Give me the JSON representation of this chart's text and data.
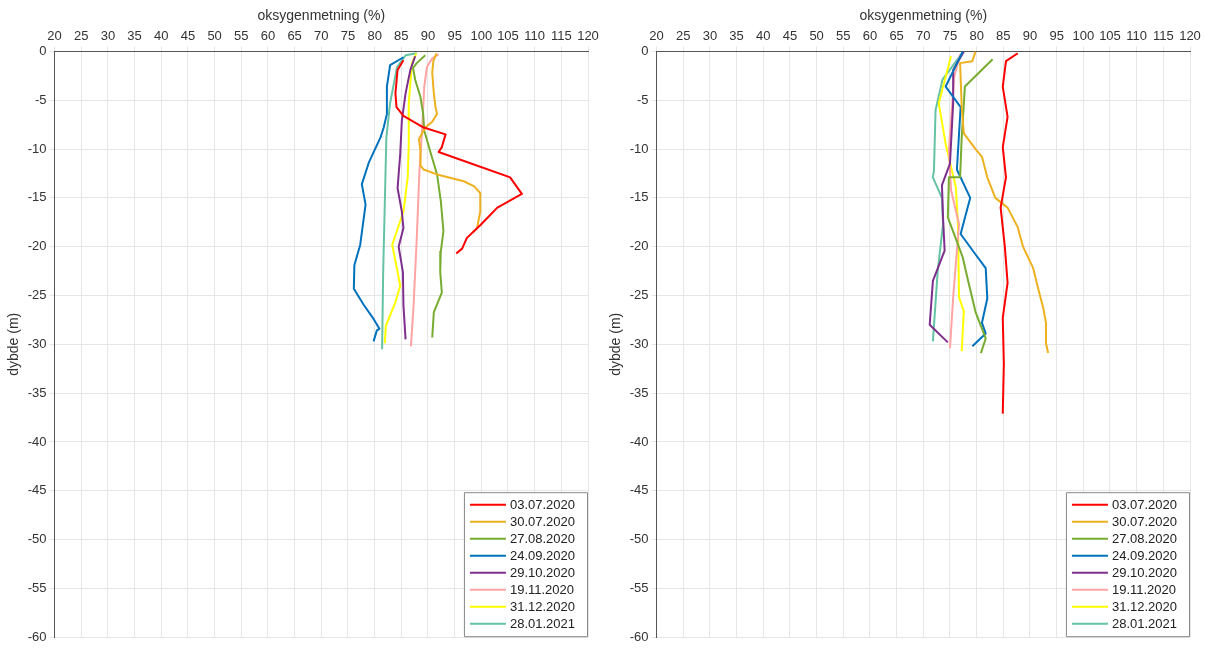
{
  "chart_data": [
    {
      "type": "line",
      "xlabel": "oksygenmetning (%)",
      "ylabel": "dybde (m)",
      "xlim": [
        20,
        120
      ],
      "xticks": [
        20,
        25,
        30,
        35,
        40,
        45,
        50,
        55,
        60,
        65,
        70,
        75,
        80,
        85,
        90,
        95,
        100,
        105,
        110,
        115,
        120
      ],
      "ylim": [
        -60,
        0
      ],
      "yticks": [
        -60,
        -55,
        -50,
        -45,
        -40,
        -35,
        -30,
        -25,
        -20,
        -15,
        -10,
        -5,
        0
      ],
      "grid": true,
      "legend": "bottom right",
      "series": [
        {
          "name": "03.07.2020",
          "color": "#ff0000",
          "x": [
            85.4,
            84.3,
            83.9,
            84.1,
            85.4,
            89.2,
            93.3,
            92.6,
            92,
            105.4,
            107.6,
            103,
            99.8,
            97.3,
            96.4,
            95.3
          ],
          "values": [
            -0.9,
            -1.9,
            -4.3,
            -5.7,
            -6.6,
            -7.8,
            -8.5,
            -9.8,
            -10.3,
            -12.9,
            -14.6,
            -16,
            -17.8,
            -19.1,
            -20.2,
            -20.7
          ]
        },
        {
          "name": "30.07.2020",
          "color": "#edb120",
          "x": [
            91.6,
            91,
            90.8,
            91.1,
            91.4,
            91.7,
            90.8,
            89.5,
            88.3,
            88.6,
            88.6,
            89.2,
            91.7,
            96.7,
            98.6,
            99.8,
            99.8,
            99.2,
            98.3
          ],
          "values": [
            -0.2,
            -1,
            -2.2,
            -4.3,
            -5.7,
            -6.4,
            -7.2,
            -7.8,
            -9,
            -10.2,
            -11.7,
            -12.1,
            -12.6,
            -13.3,
            -13.8,
            -14.5,
            -16.4,
            -18.1,
            -18.6
          ]
        },
        {
          "name": "27.08.2020",
          "color": "#77ac30",
          "x": [
            89.5,
            87.9,
            87.2,
            87.6,
            88.6,
            89.1,
            89.3,
            90.4,
            91.7,
            92.4,
            92.9,
            92.4,
            92.3,
            92.6,
            91.1,
            90.8
          ],
          "values": [
            -0.4,
            -1.2,
            -1.7,
            -2.9,
            -4.7,
            -6.4,
            -8.1,
            -10.2,
            -12.6,
            -15.3,
            -18.4,
            -20.5,
            -22.6,
            -24.7,
            -26.7,
            -29.3
          ]
        },
        {
          "name": "24.09.2020",
          "color": "#0072bd",
          "x": [
            85.4,
            82.9,
            82.3,
            82.3,
            81.7,
            81.1,
            78.9,
            77.6,
            78.3,
            77.3,
            76.2,
            76.1,
            78,
            79.8,
            80.9,
            80.4,
            79.8
          ],
          "values": [
            -0.6,
            -1.4,
            -3.6,
            -6.4,
            -7.8,
            -8.8,
            -11.4,
            -13.6,
            -15.7,
            -19.8,
            -21.9,
            -24.3,
            -26,
            -27.4,
            -28.4,
            -28.6,
            -29.7
          ]
        },
        {
          "name": "29.10.2020",
          "color": "#7e2f8e",
          "x": [
            87.6,
            86.7,
            85.8,
            85.1,
            84.8,
            84.3,
            85.1,
            85.4,
            84.5,
            85.3,
            85.4,
            85.8
          ],
          "values": [
            -0.5,
            -1.9,
            -4.3,
            -7.1,
            -10.5,
            -14,
            -16.4,
            -18.1,
            -20,
            -22.6,
            -26,
            -29.5
          ]
        },
        {
          "name": "19.11.2020",
          "color": "#ffa3a3",
          "x": [
            92,
            90.8,
            89.8,
            89.3,
            88.9,
            88.4,
            87.9,
            87.3,
            86.8
          ],
          "values": [
            -0.3,
            -0.7,
            -1.6,
            -3.6,
            -8.1,
            -12.2,
            -19.1,
            -26,
            -30.2
          ]
        },
        {
          "name": "31.12.2020",
          "color": "#ffff00",
          "x": [
            87.8,
            87,
            86.4,
            86.4,
            86.2,
            85.4,
            83.3,
            84.8,
            83.9,
            82.1,
            81.9
          ],
          "values": [
            -0.2,
            -1.2,
            -5.3,
            -9.5,
            -12.9,
            -16.4,
            -19.8,
            -24,
            -25.7,
            -28.1,
            -29.9
          ]
        },
        {
          "name": "28.01.2021",
          "color": "#66c2a5",
          "x": [
            87.9,
            85.8,
            84.2,
            82.9,
            82.2,
            81.9,
            81.6,
            81.4
          ],
          "values": [
            -0.2,
            -0.4,
            -1.6,
            -5.3,
            -8.8,
            -15.7,
            -22.6,
            -30.5
          ]
        }
      ]
    },
    {
      "type": "line",
      "xlabel": "oksygenmetning (%)",
      "ylabel": "dybde (m)",
      "xlim": [
        20,
        120
      ],
      "xticks": [
        20,
        25,
        30,
        35,
        40,
        45,
        50,
        55,
        60,
        65,
        70,
        75,
        80,
        85,
        90,
        95,
        100,
        105,
        110,
        115,
        120
      ],
      "ylim": [
        -60,
        0
      ],
      "yticks": [
        -60,
        -55,
        -50,
        -45,
        -40,
        -35,
        -30,
        -25,
        -20,
        -15,
        -10,
        -5,
        0
      ],
      "grid": true,
      "legend": "bottom right",
      "series": [
        {
          "name": "03.07.2020",
          "color": "#ff0000",
          "x": [
            87.7,
            85.5,
            84.9,
            85.8,
            84.9,
            85.5,
            84.5,
            85.3,
            85.8,
            84.9,
            85.1,
            84.9
          ],
          "values": [
            -0.2,
            -1,
            -3.6,
            -6.7,
            -9.8,
            -12.9,
            -16,
            -20.1,
            -23.7,
            -27.3,
            -32,
            -37.1
          ]
        },
        {
          "name": "30.07.2020",
          "color": "#edb120",
          "x": [
            79.8,
            79.2,
            76.9,
            77.2,
            77.6,
            79.8,
            81,
            82,
            83.5,
            85.8,
            87.7,
            88.7,
            90.6,
            91.5,
            92.5,
            93,
            93,
            93.4
          ],
          "values": [
            0,
            -1,
            -1.2,
            -5.7,
            -8.4,
            -10,
            -10.8,
            -12.9,
            -15,
            -16,
            -18,
            -20,
            -22.2,
            -24.2,
            -26.3,
            -27.8,
            -29.9,
            -30.9
          ]
        },
        {
          "name": "27.08.2020",
          "color": "#77ac30",
          "x": [
            83,
            77.8,
            77.2,
            76.9,
            74.8,
            74.6,
            77.4,
            78.4,
            79.8,
            81.7,
            80.8
          ],
          "values": [
            -0.8,
            -3.6,
            -8.8,
            -12.9,
            -12.9,
            -17,
            -21.1,
            -23.5,
            -26.7,
            -29.4,
            -30.9
          ]
        },
        {
          "name": "24.09.2020",
          "color": "#0072bd",
          "x": [
            77.4,
            74.2,
            77,
            76.3,
            78.8,
            77,
            79.8,
            81.7,
            82,
            81,
            81.7,
            79.2
          ],
          "values": [
            0,
            -3.6,
            -5.7,
            -12.1,
            -15,
            -18.7,
            -20.8,
            -22.2,
            -25.3,
            -27.8,
            -28.9,
            -30.2
          ]
        },
        {
          "name": "29.10.2020",
          "color": "#7e2f8e",
          "x": [
            77.6,
            75.6,
            75.6,
            75,
            73.5,
            73.7,
            74,
            71.8,
            71.2,
            74.6
          ],
          "values": [
            0,
            -1.9,
            -5.3,
            -11.5,
            -13.7,
            -17,
            -20.4,
            -23.5,
            -28,
            -29.8
          ]
        },
        {
          "name": "19.11.2020",
          "color": "#ffa3a3",
          "x": [
            76.9,
            75.8,
            74.8,
            75.2,
            76.7,
            75.6,
            75
          ],
          "values": [
            -0.3,
            -2.6,
            -10.1,
            -14.2,
            -17.7,
            -25.2,
            -30.4
          ]
        },
        {
          "name": "31.12.2020",
          "color": "#ffff00",
          "x": [
            75.2,
            72.9,
            74.2,
            76.1,
            76.5,
            76.7,
            77.6,
            77.2
          ],
          "values": [
            -0.5,
            -5.3,
            -9.5,
            -13.9,
            -17.7,
            -25.2,
            -26.6,
            -30.7
          ]
        },
        {
          "name": "28.01.2021",
          "color": "#66c2a5",
          "x": [
            77.4,
            73.6,
            72.3,
            72,
            71.8,
            73.5,
            73.7,
            72.7,
            71.8
          ],
          "values": [
            -0.1,
            -2.9,
            -6,
            -12.2,
            -12.9,
            -15,
            -17.7,
            -22.5,
            -29.7
          ]
        }
      ]
    }
  ]
}
